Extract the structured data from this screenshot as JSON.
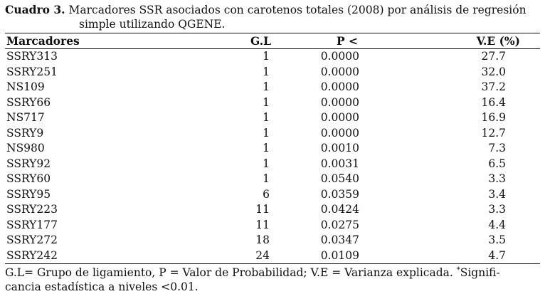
{
  "caption": {
    "label": "Cuadro 3.",
    "line1": " Marcadores SSR asociados con carotenos totales (2008) por análisis de regresión",
    "line2": "simple utilizando QGENE."
  },
  "table": {
    "headers": [
      "Marcadores",
      "G.L",
      "P <",
      "V.E (%)"
    ],
    "rows": [
      [
        "SSRY313",
        "1",
        "0.0000",
        "27.7"
      ],
      [
        "SSRY251",
        "1",
        "0.0000",
        "32.0"
      ],
      [
        "NS109",
        "1",
        "0.0000",
        "37.2"
      ],
      [
        "SSRY66",
        "1",
        "0.0000",
        "16.4"
      ],
      [
        "NS717",
        "1",
        "0.0000",
        "16.9"
      ],
      [
        "SSRY9",
        "1",
        "0.0000",
        "12.7"
      ],
      [
        "NS980",
        "1",
        "0.0010",
        "7.3"
      ],
      [
        "SSRY92",
        "1",
        "0.0031",
        "6.5"
      ],
      [
        "SSRY60",
        "1",
        "0.0540",
        "3.3"
      ],
      [
        "SSRY95",
        "6",
        "0.0359",
        "3.4"
      ],
      [
        "SSRY223",
        "11",
        "0.0424",
        "3.3"
      ],
      [
        "SSRY177",
        "11",
        "0.0275",
        "4.4"
      ],
      [
        "SSRY272",
        "18",
        "0.0347",
        "3.5"
      ],
      [
        "SSRY242",
        "24",
        "0.0109",
        "4.7"
      ]
    ]
  },
  "footnote": {
    "text1": "G.L= Grupo de ligamiento, P = Valor de Probabilidad; V.E = Varianza explicada. ",
    "mark": "*",
    "text2": "Signifi-",
    "line2": "cancia estadística a niveles <0.01."
  }
}
